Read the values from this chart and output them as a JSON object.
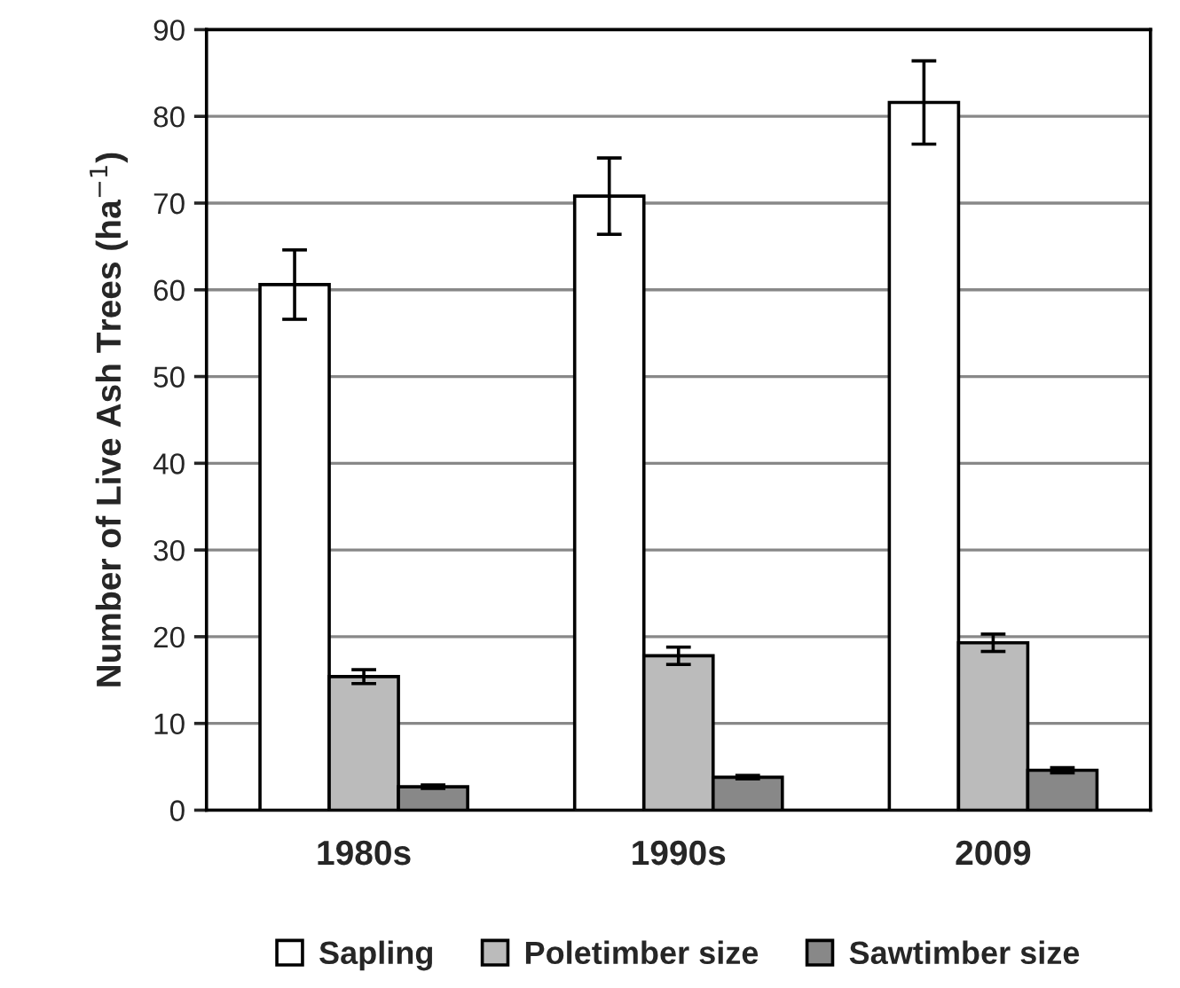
{
  "chart_data": {
    "type": "bar",
    "ylabel": "Number of Live Ash Trees (ha$^{−1}$)",
    "categories": [
      "1980s",
      "1990s",
      "2009"
    ],
    "series": [
      {
        "name": "Sapling",
        "color": "#ffffff",
        "values": [
          60.6,
          70.8,
          81.6
        ],
        "errors": [
          4,
          4.4,
          4.8
        ]
      },
      {
        "name": "Poletimber size",
        "color": "#bbbbbb",
        "values": [
          15.4,
          17.8,
          19.3
        ],
        "errors": [
          0.8,
          1,
          1
        ]
      },
      {
        "name": "Sawtimber size",
        "color": "#888888",
        "values": [
          2.7,
          3.8,
          4.6
        ],
        "errors": [
          0.2,
          0.2,
          0.3
        ]
      }
    ],
    "ylim": [
      0,
      90
    ],
    "yticks": [
      0,
      10,
      20,
      30,
      40,
      50,
      60,
      70,
      80,
      90
    ],
    "grid": "y",
    "legend": "bottom"
  }
}
